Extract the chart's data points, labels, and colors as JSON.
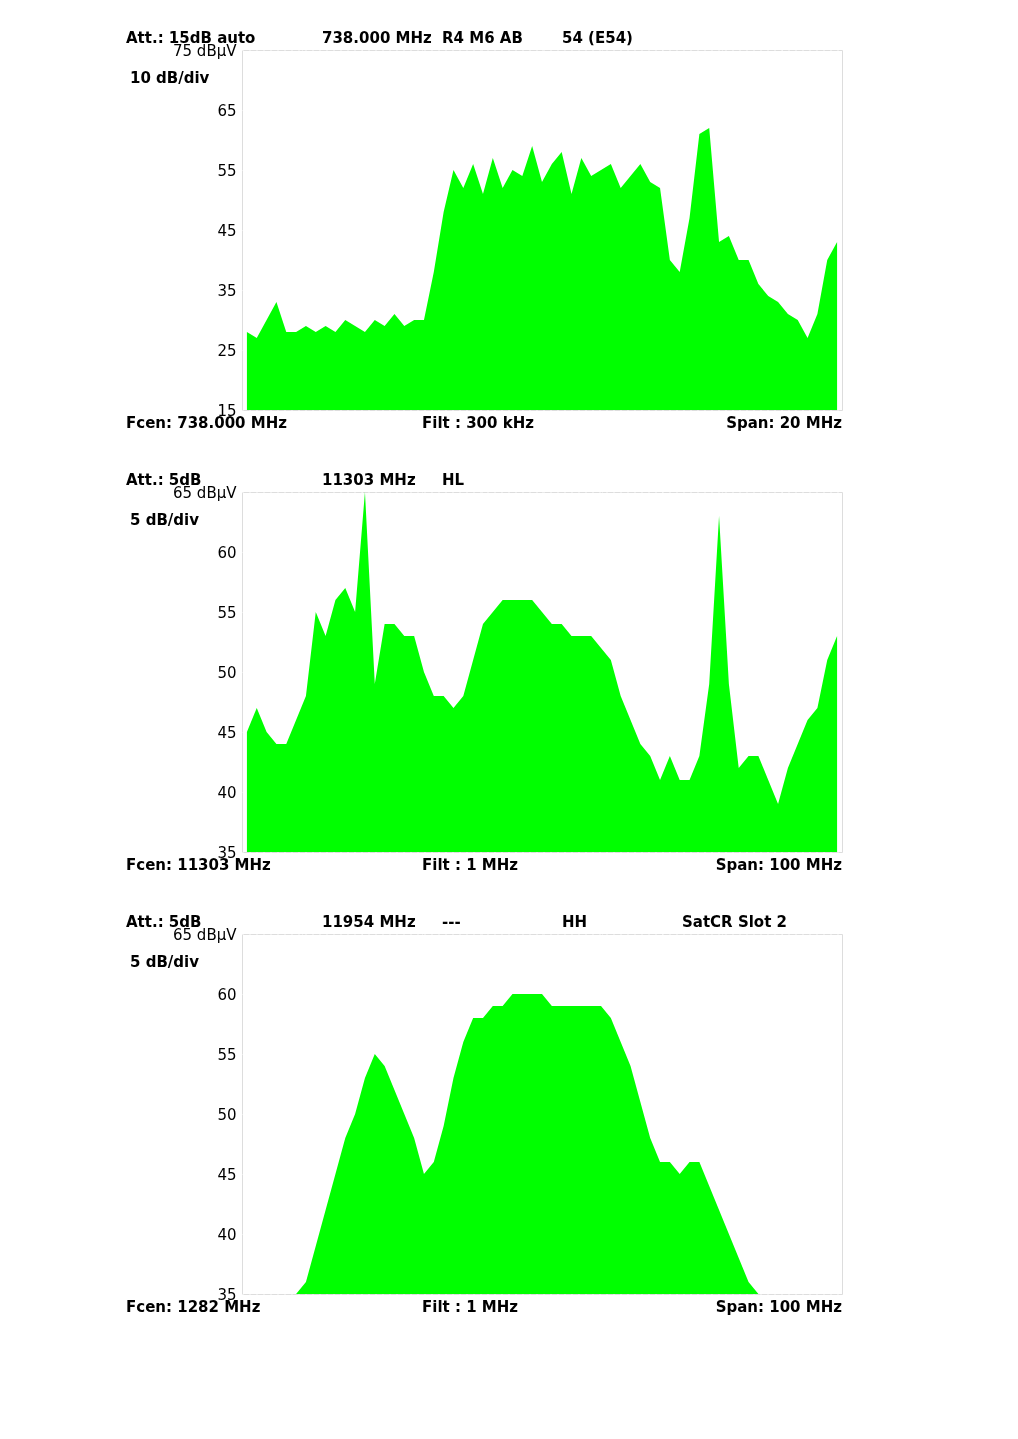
{
  "chart_data": [
    {
      "type": "area",
      "title": "Att.: 15dB auto",
      "ylabel": "10 dB/div",
      "annotations": [
        "738.000 MHz",
        "R4 M6 AB",
        "54 (E54)",
        "Fcen: 738.000 MHz",
        "Filt : 300 kHz",
        "Span: 20 MHz"
      ],
      "categories": [
        null,
        null,
        null,
        null,
        null,
        null,
        null,
        null,
        null,
        null,
        null,
        null,
        null,
        null,
        null,
        null,
        null,
        null,
        null,
        null,
        null,
        null,
        null,
        null,
        null,
        null,
        null,
        null,
        null,
        null,
        null,
        null,
        null,
        null,
        null,
        null,
        null,
        null,
        null,
        null,
        null,
        null,
        null,
        null,
        null,
        null,
        null,
        null,
        null,
        null,
        null,
        null,
        null,
        null,
        null,
        null,
        null,
        null,
        null,
        null,
        null
      ],
      "series": [
        {
          "color": "#00ff00",
          "values": [
            28,
            27,
            30,
            33,
            28,
            28,
            29,
            28,
            29,
            28,
            30,
            29,
            28,
            30,
            29,
            31,
            29,
            30,
            30,
            38,
            48,
            55,
            52,
            56,
            51,
            57,
            52,
            55,
            54,
            59,
            53,
            56,
            58,
            51,
            57,
            54,
            55,
            56,
            52,
            54,
            56,
            53,
            52,
            40,
            38,
            47,
            61,
            62,
            43,
            44,
            40,
            40,
            36,
            34,
            33,
            31,
            30,
            27,
            31,
            40,
            43
          ]
        }
      ],
      "ylim": [
        15,
        75
      ],
      "yticks": [
        {
          "value": 75,
          "label": "75 dBμV"
        },
        65,
        55,
        45,
        35,
        25,
        15
      ],
      "tick_labels": "y",
      "grid": true
    },
    {
      "type": "area",
      "title": "Att.: 5dB",
      "ylabel": "5 dB/div",
      "annotations": [
        "11303 MHz",
        "HL",
        "Fcen: 11303 MHz",
        "Filt : 1 MHz",
        "Span: 100 MHz"
      ],
      "categories": [
        null,
        null,
        null,
        null,
        null,
        null,
        null,
        null,
        null,
        null,
        null,
        null,
        null,
        null,
        null,
        null,
        null,
        null,
        null,
        null,
        null,
        null,
        null,
        null,
        null,
        null,
        null,
        null,
        null,
        null,
        null,
        null,
        null,
        null,
        null,
        null,
        null,
        null,
        null,
        null,
        null,
        null,
        null,
        null,
        null,
        null,
        null,
        null,
        null,
        null,
        null,
        null,
        null,
        null,
        null,
        null,
        null,
        null,
        null,
        null,
        null
      ],
      "series": [
        {
          "color": "#00ff00",
          "values": [
            45,
            47,
            45,
            44,
            44,
            46,
            48,
            55,
            53,
            56,
            57,
            55,
            65,
            49,
            54,
            54,
            53,
            53,
            50,
            48,
            48,
            47,
            48,
            51,
            54,
            55,
            56,
            56,
            56,
            56,
            55,
            54,
            54,
            53,
            53,
            53,
            52,
            51,
            48,
            46,
            44,
            43,
            41,
            43,
            41,
            41,
            43,
            49,
            63,
            49,
            42,
            43,
            43,
            41,
            39,
            42,
            44,
            46,
            47,
            51,
            53
          ]
        }
      ],
      "ylim": [
        35,
        65
      ],
      "yticks": [
        {
          "value": 65,
          "label": "65 dBμV"
        },
        60,
        55,
        50,
        45,
        40,
        35
      ],
      "tick_labels": "y",
      "grid": true
    },
    {
      "type": "area",
      "title": "Att.: 5dB",
      "ylabel": "5 dB/div",
      "annotations": [
        "11954 MHz",
        "---",
        "HH",
        "SatCR Slot 2",
        "Fcen: 1282 MHz",
        "Filt : 1 MHz",
        "Span: 100 MHz"
      ],
      "categories": [
        null,
        null,
        null,
        null,
        null,
        null,
        null,
        null,
        null,
        null,
        null,
        null,
        null,
        null,
        null,
        null,
        null,
        null,
        null,
        null,
        null,
        null,
        null,
        null,
        null,
        null,
        null,
        null,
        null,
        null,
        null,
        null,
        null,
        null,
        null,
        null,
        null,
        null,
        null,
        null,
        null,
        null,
        null,
        null,
        null,
        null,
        null,
        null,
        null,
        null,
        null,
        null,
        null,
        null,
        null,
        null,
        null,
        null,
        null,
        null,
        null
      ],
      "series": [
        {
          "color": "#00ff00",
          "values": [
            35,
            35,
            35,
            35,
            35,
            35,
            36,
            39,
            42,
            45,
            48,
            50,
            53,
            55,
            54,
            52,
            50,
            48,
            45,
            46,
            49,
            53,
            56,
            58,
            58,
            59,
            59,
            60,
            60,
            60,
            60,
            59,
            59,
            59,
            59,
            59,
            59,
            58,
            56,
            54,
            51,
            48,
            46,
            46,
            45,
            46,
            46,
            44,
            42,
            40,
            38,
            36,
            35,
            35,
            35,
            35,
            35,
            35,
            35,
            35,
            35
          ]
        }
      ],
      "ylim": [
        35,
        65
      ],
      "yticks": [
        {
          "value": 65,
          "label": "65 dBμV"
        },
        60,
        55,
        50,
        45,
        40,
        35
      ],
      "tick_labels": "y",
      "grid": true
    }
  ]
}
